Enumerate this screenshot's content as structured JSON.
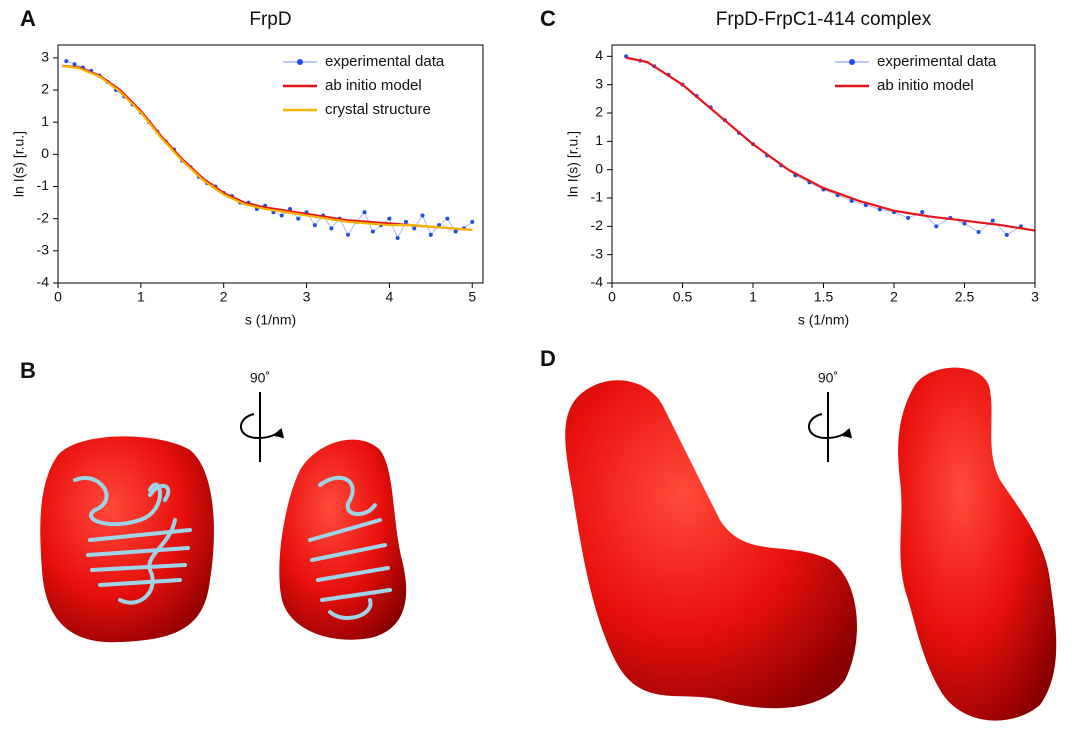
{
  "panel_labels": [
    "A",
    "B",
    "C",
    "D"
  ],
  "rotation_labels": [
    "90˚",
    "90˚"
  ],
  "chart_data": [
    {
      "type": "line",
      "title": "FrpD",
      "xlabel": "s (1/nm)",
      "ylabel": "ln I(s) [r.u.]",
      "xlim": [
        0,
        5.13
      ],
      "ylim": [
        -4,
        3.4
      ],
      "xticks": [
        0,
        1,
        2,
        3,
        4,
        5
      ],
      "yticks": [
        -4,
        -3,
        -2,
        -1,
        0,
        1,
        2,
        3
      ],
      "legend": "upper right",
      "series": [
        {
          "name": "experimental data",
          "color": "#1f4fe0",
          "style": "markers",
          "x": [
            0.1,
            0.2,
            0.3,
            0.4,
            0.5,
            0.6,
            0.7,
            0.8,
            0.9,
            1.0,
            1.1,
            1.2,
            1.3,
            1.4,
            1.5,
            1.6,
            1.7,
            1.8,
            1.9,
            2.0,
            2.1,
            2.2,
            2.3,
            2.4,
            2.5,
            2.6,
            2.7,
            2.8,
            2.9,
            3.0,
            3.1,
            3.2,
            3.3,
            3.4,
            3.5,
            3.6,
            3.7,
            3.8,
            3.9,
            4.0,
            4.1,
            4.2,
            4.3,
            4.4,
            4.5,
            4.6,
            4.7,
            4.8,
            4.9,
            5.0
          ],
          "values": [
            2.9,
            2.8,
            2.7,
            2.6,
            2.45,
            2.25,
            2.0,
            1.8,
            1.55,
            1.3,
            1.0,
            0.7,
            0.4,
            0.15,
            -0.2,
            -0.4,
            -0.7,
            -0.9,
            -1.0,
            -1.2,
            -1.3,
            -1.5,
            -1.5,
            -1.7,
            -1.6,
            -1.8,
            -1.9,
            -1.7,
            -2.0,
            -1.8,
            -2.2,
            -1.9,
            -2.3,
            -2.0,
            -2.5,
            -2.1,
            -1.8,
            -2.4,
            -2.2,
            -2.0,
            -2.6,
            -2.1,
            -2.3,
            -1.9,
            -2.5,
            -2.2,
            -2.0,
            -2.4,
            -2.3,
            -2.1
          ]
        },
        {
          "name": "ab initio model",
          "color": "#e8141c",
          "style": "line",
          "x": [
            0.05,
            0.25,
            0.5,
            0.75,
            1.0,
            1.25,
            1.5,
            1.75,
            2.0,
            2.25,
            2.5,
            2.75,
            3.0,
            3.25,
            3.5,
            3.75,
            4.0,
            4.25,
            4.5,
            4.75,
            5.0
          ],
          "values": [
            2.75,
            2.7,
            2.45,
            2.0,
            1.35,
            0.55,
            -0.15,
            -0.75,
            -1.2,
            -1.5,
            -1.65,
            -1.75,
            -1.85,
            -1.95,
            -2.05,
            -2.1,
            -2.15,
            -2.2,
            -2.25,
            -2.3,
            -2.35
          ]
        },
        {
          "name": "crystal structure",
          "color": "#f5b400",
          "style": "line",
          "x": [
            0.05,
            0.25,
            0.5,
            0.75,
            1.0,
            1.25,
            1.5,
            1.75,
            2.0,
            2.25,
            2.5,
            2.75,
            3.0,
            3.25,
            3.5,
            3.75,
            4.0,
            4.25,
            4.5,
            4.75,
            5.0
          ],
          "values": [
            2.75,
            2.68,
            2.42,
            1.95,
            1.3,
            0.5,
            -0.2,
            -0.8,
            -1.25,
            -1.55,
            -1.7,
            -1.8,
            -1.9,
            -2.0,
            -2.1,
            -2.15,
            -2.2,
            -2.2,
            -2.25,
            -2.3,
            -2.35
          ]
        }
      ]
    },
    {
      "type": "line",
      "title": "FrpD-FrpC1-414 complex",
      "xlabel": "s (1/nm)",
      "ylabel": "ln I(s) [r.u.]",
      "xlim": [
        0,
        3
      ],
      "ylim": [
        -4,
        4.4
      ],
      "xticks": [
        0,
        0.5,
        1,
        1.5,
        2,
        2.5,
        3
      ],
      "yticks": [
        -4,
        -3,
        -2,
        -1,
        0,
        1,
        2,
        3,
        4
      ],
      "legend": "upper right",
      "series": [
        {
          "name": "experimental data",
          "color": "#1f4fe0",
          "style": "markers",
          "x": [
            0.1,
            0.2,
            0.3,
            0.4,
            0.5,
            0.6,
            0.7,
            0.8,
            0.9,
            1.0,
            1.1,
            1.2,
            1.3,
            1.4,
            1.5,
            1.6,
            1.7,
            1.8,
            1.9,
            2.0,
            2.1,
            2.2,
            2.3,
            2.4,
            2.5,
            2.6,
            2.7,
            2.8,
            2.9
          ],
          "values": [
            4.0,
            3.85,
            3.65,
            3.35,
            3.0,
            2.6,
            2.2,
            1.75,
            1.3,
            0.9,
            0.5,
            0.15,
            -0.2,
            -0.45,
            -0.7,
            -0.9,
            -1.1,
            -1.25,
            -1.4,
            -1.5,
            -1.7,
            -1.5,
            -2.0,
            -1.7,
            -1.9,
            -2.2,
            -1.8,
            -2.3,
            -2.0
          ]
        },
        {
          "name": "ab initio model",
          "color": "#e8141c",
          "style": "line",
          "x": [
            0.1,
            0.25,
            0.5,
            0.75,
            1.0,
            1.25,
            1.5,
            1.75,
            2.0,
            2.25,
            2.5,
            2.75,
            3.0
          ],
          "values": [
            3.95,
            3.8,
            3.0,
            1.95,
            0.9,
            0.0,
            -0.65,
            -1.1,
            -1.45,
            -1.65,
            -1.8,
            -1.95,
            -2.15
          ]
        }
      ]
    }
  ]
}
